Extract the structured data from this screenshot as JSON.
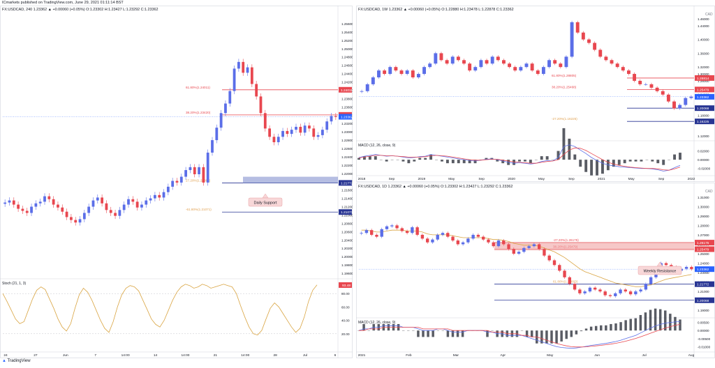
{
  "header": {
    "line": "ICmarkets published on TradingView.com, June 29, 2021 01:11:14 BST"
  },
  "footer": {
    "brand": "TradingView"
  },
  "colors": {
    "up": "#5b6ee8",
    "down": "#e8474f",
    "ema": "#d9a441",
    "support": "#283593",
    "resistance": "#e8474f",
    "fib": "#e0a050",
    "stoch": "#d9a441",
    "macd": "#5b6ee8",
    "signal": "#e8474f"
  },
  "chart_data": [
    {
      "panel": "left",
      "type": "candlestick",
      "symbol_line": "FX:USDCAD, 240  1.23362 ▲ +0.00060 (+0.05%) O:1.23302 H:1.23427 L:1.23292 C:1.23362",
      "x_ticks": [
        "24",
        "27",
        "Jun",
        "7",
        "14:00",
        "14",
        "14:00",
        "21",
        "14:00",
        "28",
        "Jul",
        "6"
      ],
      "y_ticks": [
        "1.25600",
        "1.25400",
        "1.25200",
        "1.25000",
        "1.24800",
        "1.24600",
        "1.24400",
        "1.24200",
        "1.24000",
        "1.23800",
        "1.23600",
        "1.23400",
        "1.23200",
        "1.23000",
        "1.22800",
        "1.22600",
        "1.22400",
        "1.22200",
        "1.22000",
        "1.21800",
        "1.21600",
        "1.21400",
        "1.21200",
        "1.21000",
        "1.20800",
        "1.20600",
        "1.20400",
        "1.20200",
        "1.20000",
        "1.19800",
        "1.19600"
      ],
      "ylim": [
        1.195,
        1.257
      ],
      "levels": [
        {
          "value": 1.24011,
          "label": "1.24011",
          "kind": "resistance",
          "fib_label": "61.80%(1.24011)"
        },
        {
          "value": 1.23407,
          "label": "1.23407",
          "kind": "resistance",
          "fib_label": "38.20%(1.23420)"
        },
        {
          "value": 1.23362,
          "label": "1.23362",
          "kind": "price"
        },
        {
          "value": 1.21772,
          "label": "1.21772",
          "kind": "support",
          "fib_label": "27.20%(1.21887)"
        },
        {
          "value": 1.21071,
          "label": "1.21071",
          "kind": "support",
          "fib_label": "-61.80%(1.21071)"
        }
      ],
      "annotation": "Daily Support",
      "price_series": [
        1.213,
        1.2135,
        1.2125,
        1.2115,
        1.211,
        1.2105,
        1.212,
        1.2128,
        1.2132,
        1.2145,
        1.2138,
        1.2125,
        1.2118,
        1.2108,
        1.2095,
        1.2088,
        1.2082,
        1.209,
        1.2105,
        1.212,
        1.2135,
        1.2142,
        1.2128,
        1.2112,
        1.2105,
        1.2098,
        1.2112,
        1.2125,
        1.2138,
        1.2132,
        1.2118,
        1.2125,
        1.2135,
        1.214,
        1.2148,
        1.2142,
        1.2155,
        1.2168,
        1.2182,
        1.2178,
        1.2192,
        1.2208,
        1.2215,
        1.2198,
        1.2215,
        1.2178,
        1.225,
        1.228,
        1.231,
        1.2345,
        1.2368,
        1.2398,
        1.2452,
        1.2468,
        1.2442,
        1.2455,
        1.2415,
        1.2385,
        1.2345,
        1.2308,
        1.2288,
        1.2275,
        1.2288,
        1.2302,
        1.2295,
        1.2305,
        1.2312,
        1.2298,
        1.2315,
        1.2308,
        1.2288,
        1.2292,
        1.2305,
        1.2325,
        1.2338,
        1.2336
      ],
      "stoch": {
        "label": "Stoch (21, 1, 3)",
        "value": "93.48",
        "y_ticks": [
          "80.00",
          "60.00",
          "40.00",
          "20.00"
        ],
        "values": [
          80,
          68,
          55,
          42,
          35,
          38,
          55,
          72,
          85,
          90,
          86,
          72,
          58,
          42,
          30,
          24,
          35,
          58,
          78,
          88,
          82,
          70,
          55,
          40,
          28,
          22,
          38,
          60,
          78,
          88,
          92,
          90,
          84,
          70,
          56,
          42,
          34,
          30,
          40,
          55,
          70,
          82,
          90,
          94,
          92,
          88,
          90,
          94,
          92,
          88,
          90,
          92,
          94,
          92,
          90,
          80,
          62,
          45,
          30,
          20,
          18,
          25,
          42,
          58,
          66,
          60,
          50,
          40,
          30,
          22,
          28,
          45,
          68,
          85,
          93
        ]
      }
    },
    {
      "panel": "top-right",
      "type": "candlestick",
      "symbol_line": "FX:USDCAD, 1W  1.23362 ▲ +0.00060 (+0.05%) O:1.22880 H:1.23478 L:1.22878 C:1.23362",
      "currency": "CAD",
      "x_ticks": [
        "2018",
        "Sep",
        "2019",
        "May",
        "Sep",
        "2020",
        "May",
        "Sep",
        "2021",
        "May",
        "Sep",
        "2022"
      ],
      "y_ticks": [
        "1.46000",
        "1.44000",
        "1.40000",
        "1.36000",
        "1.32000",
        "1.30000",
        "1.28000",
        "1.24000",
        "1.20000",
        "1.18000",
        "1.16000",
        "1.12000"
      ],
      "ylim": [
        1.11,
        1.47
      ],
      "levels": [
        {
          "value": 1.28814,
          "label": "1.28814",
          "kind": "resistance",
          "fib_label": "61.80%(1.28805)"
        },
        {
          "value": 1.25479,
          "label": "1.25479",
          "kind": "resistance",
          "fib_label": "38.20%(1.25468)"
        },
        {
          "value": 1.23362,
          "label": "1.23362",
          "kind": "price"
        },
        {
          "value": 1.20068,
          "label": "1.20068",
          "kind": "support"
        },
        {
          "value": 1.16225,
          "label": "1.16225",
          "kind": "support",
          "fib_label": "-27.20%(1.16225)"
        }
      ],
      "price_series": [
        1.25,
        1.27,
        1.29,
        1.31,
        1.3,
        1.32,
        1.31,
        1.3,
        1.31,
        1.29,
        1.3,
        1.32,
        1.33,
        1.36,
        1.34,
        1.33,
        1.35,
        1.34,
        1.33,
        1.31,
        1.32,
        1.34,
        1.33,
        1.35,
        1.34,
        1.33,
        1.32,
        1.31,
        1.32,
        1.33,
        1.31,
        1.3,
        1.32,
        1.34,
        1.33,
        1.32,
        1.35,
        1.45,
        1.42,
        1.4,
        1.39,
        1.37,
        1.35,
        1.34,
        1.33,
        1.32,
        1.31,
        1.3,
        1.28,
        1.27,
        1.27,
        1.26,
        1.25,
        1.24,
        1.22,
        1.2,
        1.21,
        1.23,
        1.234
      ],
      "macd": {
        "label": "MACD (12, 26, close, 9)",
        "y_ticks": [
          "0.02000",
          "0.00000",
          "-0.02000"
        ],
        "ylim": [
          -0.03,
          0.04
        ],
        "macd": [
          0.005,
          0.008,
          0.01,
          0.012,
          0.01,
          0.008,
          0.009,
          0.008,
          0.006,
          0.004,
          0.005,
          0.007,
          0.008,
          0.012,
          0.01,
          0.008,
          0.006,
          0.004,
          0.002,
          0.0,
          -0.002,
          -0.003,
          -0.001,
          0.001,
          0.002,
          0.0,
          -0.003,
          -0.006,
          -0.008,
          -0.007,
          -0.008,
          -0.01,
          -0.008,
          -0.004,
          -0.002,
          -0.003,
          0.005,
          0.03,
          0.034,
          0.03,
          0.022,
          0.014,
          0.005,
          -0.002,
          -0.008,
          -0.012,
          -0.014,
          -0.016,
          -0.017,
          -0.018,
          -0.019,
          -0.02,
          -0.02,
          -0.021,
          -0.023,
          -0.026,
          -0.024,
          -0.018,
          -0.013
        ],
        "signal": [
          0.004,
          0.006,
          0.008,
          0.01,
          0.01,
          0.009,
          0.009,
          0.008,
          0.007,
          0.006,
          0.006,
          0.006,
          0.007,
          0.009,
          0.01,
          0.009,
          0.008,
          0.006,
          0.004,
          0.002,
          0.0,
          -0.001,
          -0.001,
          0.0,
          0.001,
          0.001,
          -0.001,
          -0.003,
          -0.005,
          -0.006,
          -0.007,
          -0.008,
          -0.008,
          -0.006,
          -0.004,
          -0.003,
          0.0,
          0.012,
          0.022,
          0.027,
          0.026,
          0.021,
          0.014,
          0.007,
          0.0,
          -0.006,
          -0.01,
          -0.013,
          -0.015,
          -0.017,
          -0.018,
          -0.019,
          -0.02,
          -0.02,
          -0.021,
          -0.023,
          -0.024,
          -0.021,
          -0.017
        ]
      }
    },
    {
      "panel": "bottom-right",
      "type": "candlestick",
      "symbol_line": "FX:USDCAD, 1D  1.23362 ▲ +0.00060 (+0.05%) O:1.23302 H:1.23427 L:1.23292 C:1.23362",
      "currency": "CAD",
      "x_ticks": [
        "2021",
        "Feb",
        "Mar",
        "Apr",
        "May",
        "Jun",
        "Jul",
        "Aug"
      ],
      "y_ticks": [
        "1.31000",
        "1.30000",
        "1.29000",
        "1.28000",
        "1.27000",
        "1.26000",
        "1.25000",
        "1.24000",
        "1.23000",
        "1.22000",
        "1.21000",
        "1.20000",
        "1.19000"
      ],
      "ylim": [
        1.185,
        1.315
      ],
      "levels": [
        {
          "value": 1.26175,
          "label": "1.26175",
          "kind": "resistance",
          "fib_label": "-27.20%(1.26175)"
        },
        {
          "value": 1.25479,
          "label": "1.25479",
          "kind": "resistance",
          "fib_label": "38.20%(1.25479)"
        },
        {
          "value": 1.23362,
          "label": "1.23362",
          "kind": "price"
        },
        {
          "value": 1.21772,
          "label": "1.21772",
          "kind": "support",
          "fib_label": "61.80%(1.21603)"
        },
        {
          "value": 1.20068,
          "label": "1.20068",
          "kind": "support"
        }
      ],
      "annotation": "Weekly Resistance",
      "price_series": [
        1.272,
        1.275,
        1.27,
        1.268,
        1.276,
        1.279,
        1.28,
        1.277,
        1.274,
        1.272,
        1.278,
        1.27,
        1.266,
        1.262,
        1.265,
        1.27,
        1.272,
        1.268,
        1.264,
        1.26,
        1.262,
        1.266,
        1.27,
        1.268,
        1.265,
        1.262,
        1.258,
        1.264,
        1.26,
        1.255,
        1.25,
        1.252,
        1.256,
        1.258,
        1.26,
        1.255,
        1.248,
        1.243,
        1.238,
        1.232,
        1.225,
        1.218,
        1.212,
        1.208,
        1.21,
        1.214,
        1.212,
        1.21,
        1.206,
        1.205,
        1.208,
        1.212,
        1.21,
        1.207,
        1.21,
        1.212,
        1.218,
        1.225,
        1.235,
        1.24,
        1.238,
        1.236,
        1.232,
        1.234,
        1.236,
        1.2336
      ],
      "ema_series": [
        1.275,
        1.275,
        1.274,
        1.273,
        1.273,
        1.274,
        1.275,
        1.275,
        1.275,
        1.274,
        1.274,
        1.274,
        1.273,
        1.271,
        1.27,
        1.27,
        1.27,
        1.27,
        1.269,
        1.268,
        1.267,
        1.267,
        1.267,
        1.267,
        1.267,
        1.266,
        1.265,
        1.265,
        1.264,
        1.263,
        1.261,
        1.26,
        1.259,
        1.259,
        1.259,
        1.258,
        1.256,
        1.254,
        1.252,
        1.249,
        1.246,
        1.242,
        1.238,
        1.234,
        1.231,
        1.229,
        1.227,
        1.225,
        1.223,
        1.221,
        1.219,
        1.218,
        1.217,
        1.216,
        1.215,
        1.215,
        1.216,
        1.217,
        1.219,
        1.221,
        1.223,
        1.224,
        1.225,
        1.226,
        1.227,
        1.228
      ],
      "macd": {
        "label": "MACD (12, 26, close, 9)",
        "y_ticks": [
          "0.00500",
          "0.00000",
          "-0.00500",
          "-0.01000"
        ],
        "ylim": [
          -0.012,
          0.007
        ],
        "macd": [
          0.0,
          0.001,
          0.001,
          0.002,
          0.002,
          0.003,
          0.003,
          0.003,
          0.003,
          0.002,
          0.002,
          0.002,
          0.001,
          0.0,
          0.0,
          0.0,
          0.001,
          0.001,
          0.0,
          -0.001,
          -0.001,
          -0.001,
          0.0,
          0.0,
          0.0,
          0.0,
          -0.001,
          -0.001,
          -0.002,
          -0.002,
          -0.003,
          -0.003,
          -0.003,
          -0.003,
          -0.004,
          -0.005,
          -0.006,
          -0.007,
          -0.008,
          -0.009,
          -0.01,
          -0.0105,
          -0.0108,
          -0.011,
          -0.0108,
          -0.0103,
          -0.0098,
          -0.0092,
          -0.0088,
          -0.0084,
          -0.008,
          -0.0074,
          -0.0068,
          -0.006,
          -0.005,
          -0.004,
          -0.003,
          -0.0015,
          0.0,
          0.0015,
          0.0028,
          0.0038,
          0.0046,
          0.005,
          0.0053,
          0.0055
        ],
        "signal": [
          0.0,
          0.0,
          0.001,
          0.001,
          0.001,
          0.002,
          0.002,
          0.002,
          0.002,
          0.002,
          0.002,
          0.002,
          0.002,
          0.001,
          0.001,
          0.001,
          0.001,
          0.001,
          0.001,
          0.0,
          0.0,
          0.0,
          0.0,
          0.0,
          0.0,
          0.0,
          0.0,
          -0.001,
          -0.001,
          -0.001,
          -0.002,
          -0.002,
          -0.002,
          -0.003,
          -0.003,
          -0.004,
          -0.004,
          -0.005,
          -0.006,
          -0.007,
          -0.008,
          -0.0088,
          -0.0095,
          -0.01,
          -0.0102,
          -0.0102,
          -0.0101,
          -0.0098,
          -0.0095,
          -0.0092,
          -0.0088,
          -0.0084,
          -0.0079,
          -0.0073,
          -0.0066,
          -0.0058,
          -0.0049,
          -0.0039,
          -0.0028,
          -0.0017,
          -0.0006,
          0.0005,
          0.0015,
          0.0024,
          0.0032,
          0.0038
        ]
      }
    }
  ]
}
